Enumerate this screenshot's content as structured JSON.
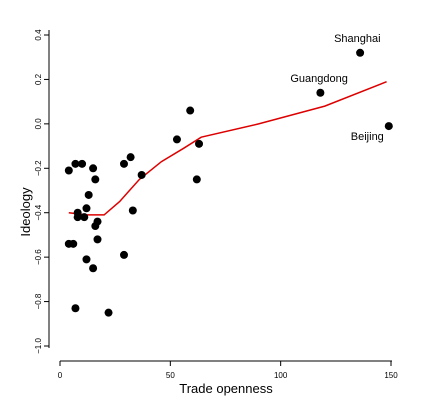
{
  "chart_data": {
    "type": "scatter",
    "xlabel": "Trade openness",
    "ylabel": "Ideology",
    "xlim": [
      0,
      150
    ],
    "ylim": [
      -1.0,
      0.4
    ],
    "x_ticks": [
      0,
      50,
      100,
      150
    ],
    "y_ticks": [
      -1.0,
      -0.8,
      -0.6,
      -0.4,
      -0.2,
      0.0,
      0.2,
      0.4
    ],
    "x_tick_labels": [
      "0",
      "50",
      "100",
      "150"
    ],
    "y_tick_labels": [
      "−1.0",
      "−0.8",
      "−0.6",
      "−0.4",
      "−0.2",
      "0.0",
      "0.2",
      "0.4"
    ],
    "grid": false,
    "point_color": "#000000",
    "line_color": "#dd0000",
    "points": [
      {
        "x": 136,
        "y": 0.32,
        "label": "Shanghai"
      },
      {
        "x": 118,
        "y": 0.14,
        "label": "Guangdong"
      },
      {
        "x": 149,
        "y": -0.01,
        "label": "Beijing"
      },
      {
        "x": 59,
        "y": 0.06
      },
      {
        "x": 53,
        "y": -0.07
      },
      {
        "x": 63,
        "y": -0.09
      },
      {
        "x": 32,
        "y": -0.15
      },
      {
        "x": 29,
        "y": -0.18
      },
      {
        "x": 37,
        "y": -0.23
      },
      {
        "x": 62,
        "y": -0.25
      },
      {
        "x": 33,
        "y": -0.39
      },
      {
        "x": 4,
        "y": -0.21
      },
      {
        "x": 7,
        "y": -0.18
      },
      {
        "x": 10,
        "y": -0.18
      },
      {
        "x": 15,
        "y": -0.2
      },
      {
        "x": 16,
        "y": -0.25
      },
      {
        "x": 13,
        "y": -0.32
      },
      {
        "x": 12,
        "y": -0.38
      },
      {
        "x": 8,
        "y": -0.4
      },
      {
        "x": 8,
        "y": -0.42
      },
      {
        "x": 11,
        "y": -0.42
      },
      {
        "x": 17,
        "y": -0.44
      },
      {
        "x": 16,
        "y": -0.46
      },
      {
        "x": 17,
        "y": -0.52
      },
      {
        "x": 4,
        "y": -0.54
      },
      {
        "x": 6,
        "y": -0.54
      },
      {
        "x": 29,
        "y": -0.59
      },
      {
        "x": 12,
        "y": -0.61
      },
      {
        "x": 15,
        "y": -0.65
      },
      {
        "x": 7,
        "y": -0.83
      },
      {
        "x": 22,
        "y": -0.85
      }
    ],
    "fit_line": {
      "x": [
        4,
        12,
        20,
        27,
        36,
        46,
        56,
        64,
        90,
        120,
        148
      ],
      "y": [
        -0.4,
        -0.41,
        -0.41,
        -0.35,
        -0.25,
        -0.17,
        -0.11,
        -0.06,
        0.0,
        0.08,
        0.19
      ]
    }
  }
}
